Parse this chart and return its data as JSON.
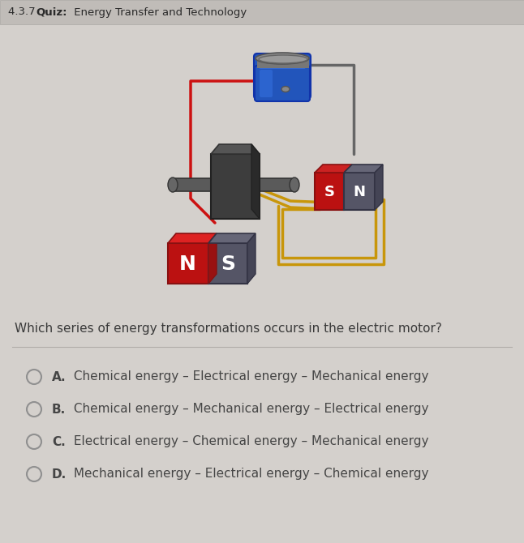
{
  "title_prefix": "4.3.7 ",
  "title_bold": "Quiz:",
  "title_suffix": " Energy Transfer and Technology",
  "question": "Which series of energy transformations occurs in the electric motor?",
  "options": [
    {
      "label": "A.",
      "text": " Chemical energy – Electrical energy – Mechanical energy"
    },
    {
      "label": "B.",
      "text": " Chemical energy – Mechanical energy – Electrical energy"
    },
    {
      "label": "C.",
      "text": " Electrical energy – Chemical energy – Mechanical energy"
    },
    {
      "label": "D.",
      "text": " Mechanical energy – Electrical energy – Chemical energy"
    }
  ],
  "bg_color": "#cac6c2",
  "title_bar_color": "#c0bcb8",
  "panel_color": "#d4d0cc",
  "text_color": "#3a3a3a",
  "title_color": "#2a2a2a",
  "option_text_color": "#454545",
  "divider_color": "#b0aca8",
  "circle_edge_color": "#909090",
  "fig_width": 6.46,
  "fig_height": 6.7,
  "dpi": 100
}
